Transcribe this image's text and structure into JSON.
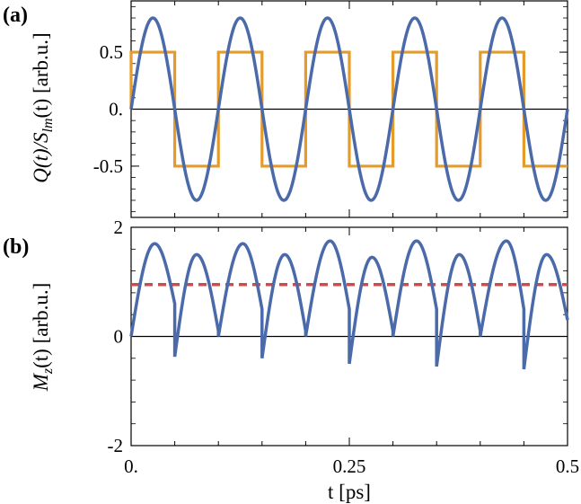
{
  "chart_data": [
    {
      "panel_label": "(a)",
      "type": "line",
      "ylabel": "Q(t)/S_lm(t) [arb.u.]",
      "ylabel_parts": {
        "q": "Q(t)/S",
        "sub": "lm",
        "rest": "(t) [arb.u.]"
      },
      "xlim": [
        0,
        0.5
      ],
      "ylim": [
        -0.95,
        0.95
      ],
      "yticks": [
        0.5,
        0,
        -0.5
      ],
      "ytick_labels": [
        "0.5",
        "0.",
        "-0.5"
      ],
      "grid": false,
      "zero_line": true,
      "series": [
        {
          "kind": "sine",
          "color": "#4a6aaa",
          "amplitude": 0.8,
          "period": 0.1,
          "phase_shift": 0.0
        },
        {
          "kind": "square",
          "color": "#e59b2a",
          "high": 0.5,
          "low": -0.5,
          "period": 0.1,
          "rise_edges": [
            0.0,
            0.1,
            0.2,
            0.3,
            0.4
          ],
          "fall_edges": [
            0.05,
            0.15,
            0.25,
            0.35,
            0.45
          ]
        }
      ]
    },
    {
      "panel_label": "(b)",
      "type": "line",
      "ylabel": "M_z(t) [arb.u.]",
      "ylabel_parts": {
        "m": "M",
        "sub": "z",
        "rest": "(t) [arb.u.]"
      },
      "xlabel": "t [ps]",
      "xlim": [
        0,
        0.5
      ],
      "ylim": [
        -2,
        2
      ],
      "yticks": [
        2,
        0,
        -2
      ],
      "ytick_labels": [
        "2",
        "0",
        "-2"
      ],
      "xticks": [
        0,
        0.25,
        0.5
      ],
      "xtick_labels": [
        "0.",
        "0.25",
        "0.5"
      ],
      "grid": false,
      "zero_line": true,
      "series": [
        {
          "kind": "rectified",
          "color": "#4a6aaa",
          "segment_length": 0.05,
          "peaks": [
            {
              "t": 0.027,
              "y": 1.7
            },
            {
              "t": 0.075,
              "y": 1.5
            },
            {
              "t": 0.128,
              "y": 1.7
            },
            {
              "t": 0.176,
              "y": 1.5
            },
            {
              "t": 0.228,
              "y": 1.75
            },
            {
              "t": 0.276,
              "y": 1.45
            },
            {
              "t": 0.327,
              "y": 1.75
            },
            {
              "t": 0.376,
              "y": 1.5
            },
            {
              "t": 0.43,
              "y": 1.75
            },
            {
              "t": 0.476,
              "y": 1.5
            }
          ],
          "starts": [
            0.0,
            -0.37,
            0.0,
            -0.4,
            0.0,
            -0.5,
            0.0,
            -0.55,
            0.0,
            -0.6
          ],
          "ends": [
            0.6,
            0.1,
            0.5,
            0.1,
            0.5,
            0.1,
            0.5,
            0.1,
            0.5,
            0.3
          ]
        },
        {
          "kind": "hline",
          "color": "#d04a4a",
          "style": "dashed",
          "y": 0.95
        }
      ]
    }
  ]
}
